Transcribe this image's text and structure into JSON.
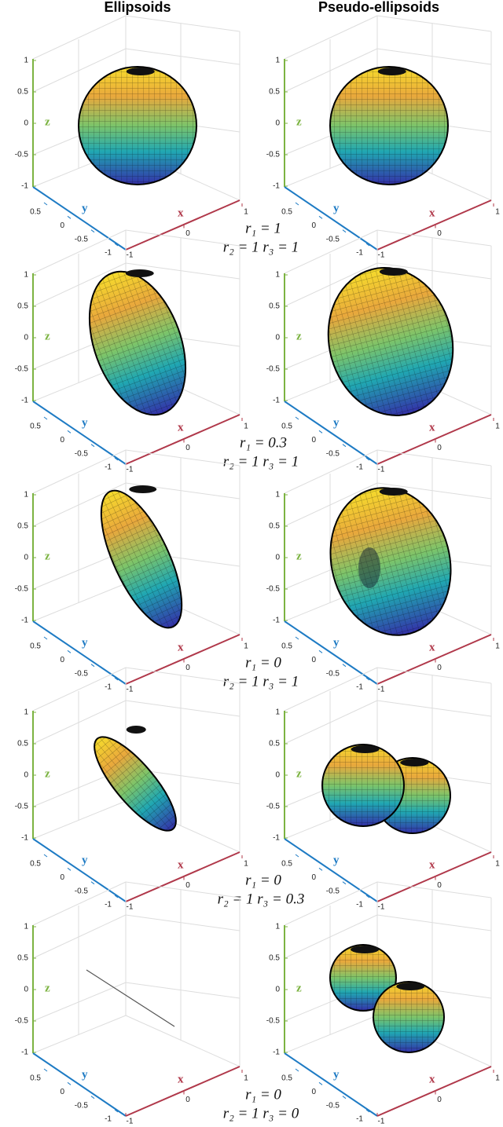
{
  "headers": [
    "Ellipsoids",
    "Pseudo-ellipsoids"
  ],
  "axes": {
    "x_label": "x",
    "y_label": "y",
    "z_label": "z",
    "x_ticks": [
      -1,
      0,
      1
    ],
    "y_ticks": [
      -1,
      -0.5,
      0,
      0.5
    ],
    "z_ticks": [
      -1,
      -0.5,
      0,
      0.5,
      1
    ]
  },
  "rows": [
    {
      "r1": "r₁ = 1",
      "r2_r3": "r₂ = 1  r₃ = 1"
    },
    {
      "r1": "r₁ = 0.3",
      "r2_r3": "r₂ = 1  r₃ = 1"
    },
    {
      "r1": "r₁ = 0",
      "r2_r3": "r₂ = 1  r₃ = 1"
    },
    {
      "r1": "r₁ = 0",
      "r2_r3": "r₂ = 1  r₃ = 0.3"
    },
    {
      "r1": "r₁ = 0",
      "r2_r3": "r₂ = 1  r₃ = 0"
    }
  ]
}
